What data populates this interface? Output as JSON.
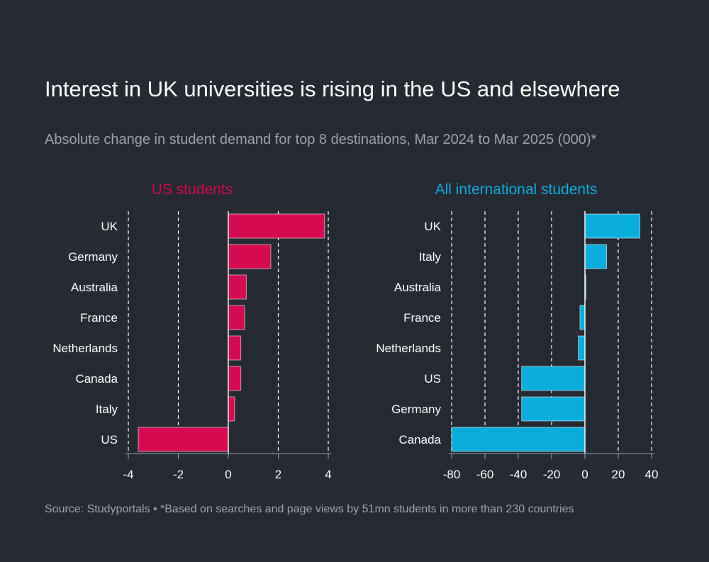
{
  "header": {
    "title": "Interest in UK universities is rising in the US and elsewhere",
    "subtitle": "Absolute change in student demand for top 8 destinations, Mar 2024 to Mar 2025 (000)*"
  },
  "footer": {
    "source": "Source: Studyportals • *Based on searches and page views by 51mn students in more than 230 countries"
  },
  "colors": {
    "background": "#262a33",
    "us_series": "#d60a50",
    "intl_series": "#0aaedc",
    "text": "#ffffff",
    "muted_text": "#9ea2ab"
  },
  "chart_data": [
    {
      "type": "bar",
      "orientation": "horizontal",
      "title": "US students",
      "categories": [
        "UK",
        "Germany",
        "Australia",
        "France",
        "Netherlands",
        "Canada",
        "Italy",
        "US"
      ],
      "values": [
        3.85,
        1.7,
        0.72,
        0.65,
        0.5,
        0.5,
        0.25,
        -3.6
      ],
      "xlim": [
        -4,
        4
      ],
      "ticks": [
        -4,
        -2,
        0,
        2,
        4
      ],
      "grid": "vertical dashed",
      "color": "#d60a50"
    },
    {
      "type": "bar",
      "orientation": "horizontal",
      "title": "All international students",
      "categories": [
        "UK",
        "Italy",
        "Australia",
        "France",
        "Netherlands",
        "US",
        "Germany",
        "Canada"
      ],
      "values": [
        33,
        13,
        0.5,
        -3,
        -4,
        -38,
        -38,
        -80
      ],
      "xlim": [
        -80,
        40
      ],
      "ticks": [
        -80,
        -60,
        -40,
        -20,
        0,
        20,
        40
      ],
      "grid": "vertical dashed",
      "color": "#0aaedc"
    }
  ]
}
